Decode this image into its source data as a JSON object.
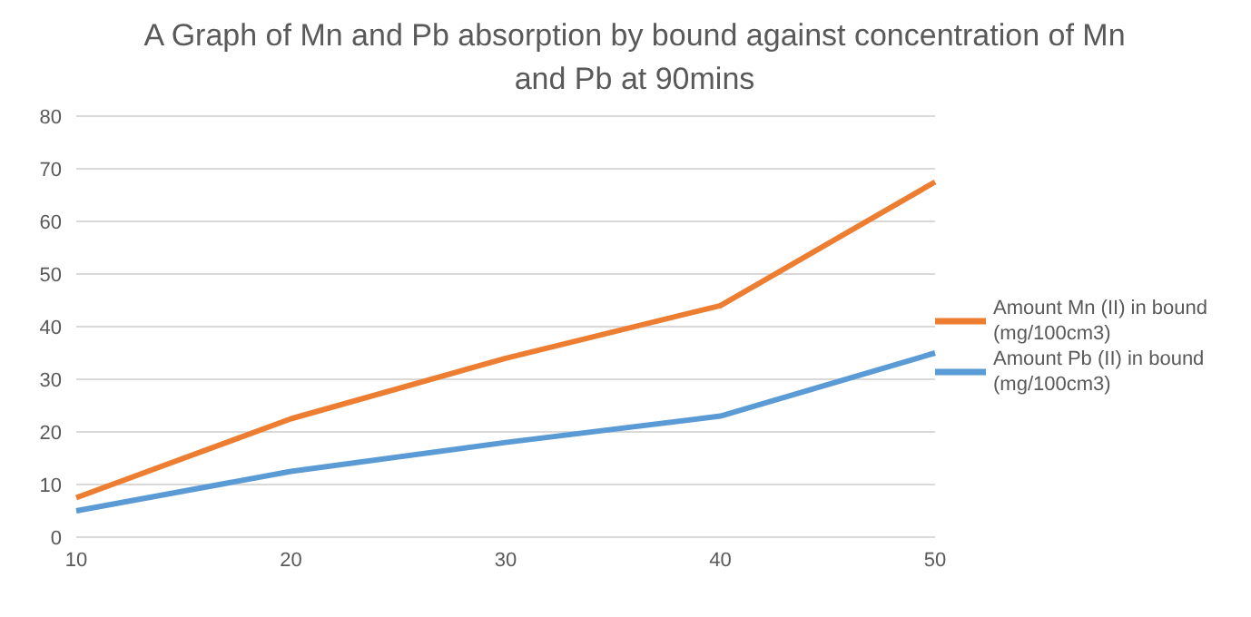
{
  "chart_data": {
    "type": "line",
    "title": "A Graph of Mn and Pb absorption by bound against concentration of Mn and Pb at 90mins",
    "categories": [
      "10",
      "20",
      "30",
      "40",
      "50"
    ],
    "series": [
      {
        "name": "Amount Mn (II) in bound (mg/100cm3)",
        "color": "#ed7d31",
        "values": [
          7.5,
          22.5,
          34,
          44,
          67.5
        ]
      },
      {
        "name": "Amount Pb (II) in bound (mg/100cm3)",
        "color": "#5b9bd5",
        "values": [
          5,
          12.5,
          18,
          23,
          35
        ]
      }
    ],
    "ylim": [
      0,
      80
    ],
    "yticks": [
      0,
      10,
      20,
      30,
      40,
      50,
      60,
      70,
      80
    ],
    "grid": "y",
    "legend": "right",
    "marker": "none",
    "line_style": "solid"
  }
}
